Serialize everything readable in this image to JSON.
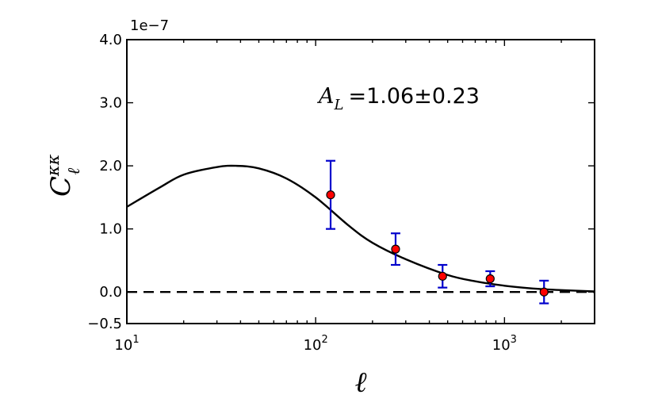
{
  "chart_data": {
    "type": "scatter",
    "xscale": "log",
    "xlim": [
      10,
      3000
    ],
    "ylim": [
      -0.5,
      4.0
    ],
    "y_scale_factor_label": "1e−7",
    "xlabel": "ℓ",
    "ylabel": {
      "main": "C",
      "superscript": "κκ",
      "subscript": "ℓ"
    },
    "x_ticks": [
      {
        "value": 10,
        "base": "10",
        "exp": "1"
      },
      {
        "value": 100,
        "base": "10",
        "exp": "2"
      },
      {
        "value": 1000,
        "base": "10",
        "exp": "3"
      }
    ],
    "y_ticks": [
      {
        "value": -0.5,
        "label": "−0.5"
      },
      {
        "value": 0.0,
        "label": "0.0"
      },
      {
        "value": 1.0,
        "label": "1.0"
      },
      {
        "value": 2.0,
        "label": "2.0"
      },
      {
        "value": 3.0,
        "label": "3.0"
      },
      {
        "value": 4.0,
        "label": "4.0"
      }
    ],
    "annotation": {
      "symbol": "A",
      "subscript": "L",
      "text": "=1.06±0.23"
    },
    "data_points": [
      {
        "x": 120,
        "y": 1.54,
        "yerr": 0.54
      },
      {
        "x": 265,
        "y": 0.68,
        "yerr": 0.25
      },
      {
        "x": 470,
        "y": 0.25,
        "yerr": 0.18
      },
      {
        "x": 840,
        "y": 0.21,
        "yerr": 0.12
      },
      {
        "x": 1620,
        "y": 0.0,
        "yerr": 0.18
      }
    ],
    "model_curve": {
      "x": [
        10,
        15,
        20,
        30,
        38,
        50,
        70,
        100,
        150,
        200,
        300,
        500,
        700,
        1000,
        1500,
        2000,
        3000
      ],
      "y": [
        1.35,
        1.66,
        1.86,
        1.98,
        2.0,
        1.96,
        1.8,
        1.5,
        1.05,
        0.78,
        0.52,
        0.27,
        0.17,
        0.1,
        0.05,
        0.03,
        0.01
      ]
    },
    "reference_line": {
      "y": 0.0,
      "style": "dashed"
    },
    "colors": {
      "marker_fill": "#ff0000",
      "marker_edge": "#000000",
      "errorbar": "#0000cc",
      "curve": "#000000",
      "reference": "#000000"
    }
  }
}
